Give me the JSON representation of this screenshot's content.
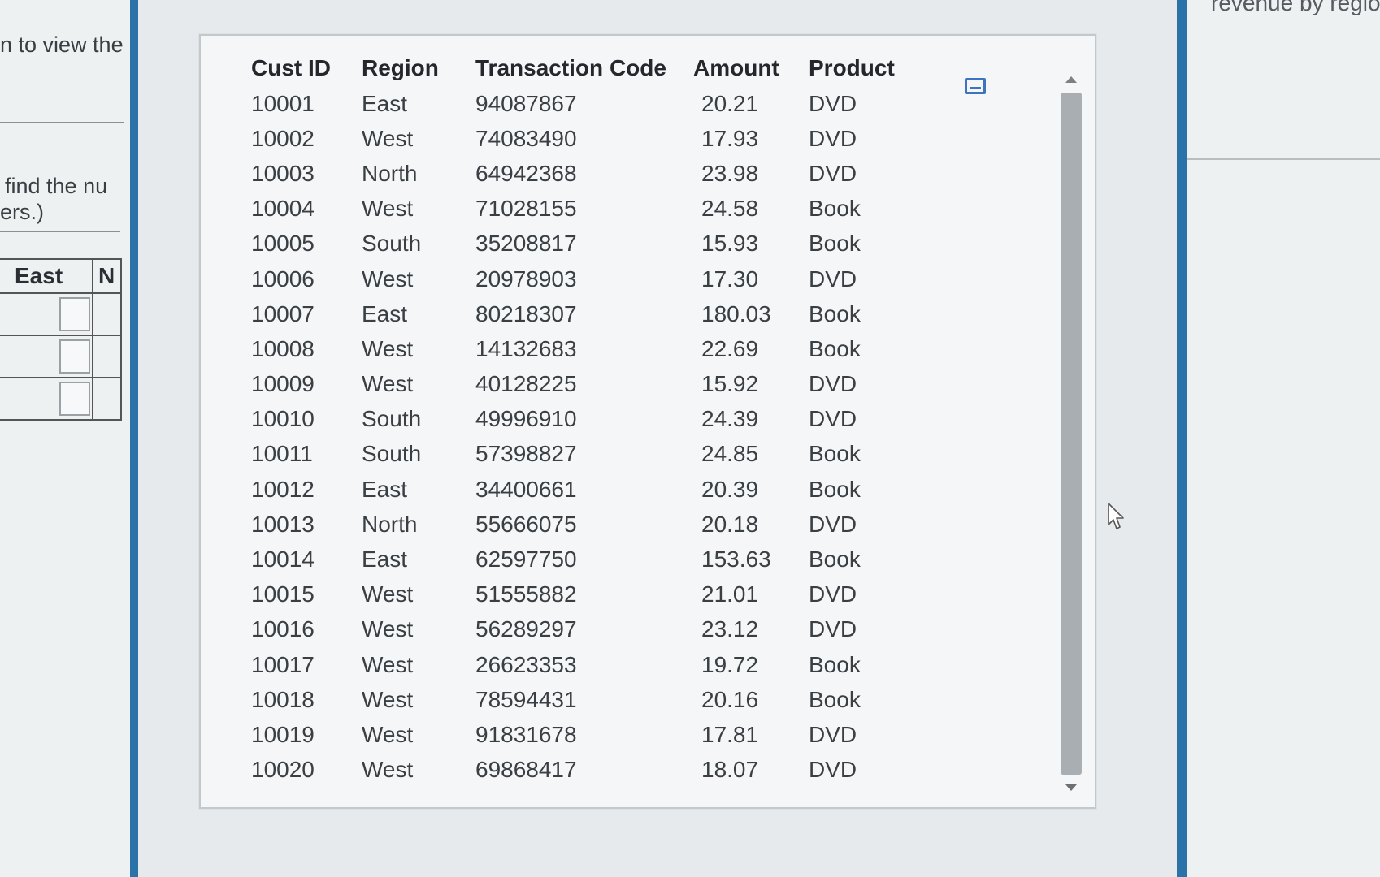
{
  "left_panel": {
    "text_line1": "n to view the",
    "text_line2": "find the nu",
    "text_line3": "ers.)",
    "table_headers": [
      "East",
      "N"
    ],
    "answer_box_count": 3
  },
  "right_panel": {
    "partial_title": "revenue by region"
  },
  "data_table": {
    "columns": [
      "Cust ID",
      "Region",
      "Transaction Code",
      "Amount",
      "Product"
    ],
    "rows": [
      [
        "10001",
        "East",
        "94087867",
        "20.21",
        "DVD"
      ],
      [
        "10002",
        "West",
        "74083490",
        "17.93",
        "DVD"
      ],
      [
        "10003",
        "North",
        "64942368",
        "23.98",
        "DVD"
      ],
      [
        "10004",
        "West",
        "71028155",
        "24.58",
        "Book"
      ],
      [
        "10005",
        "South",
        "35208817",
        "15.93",
        "Book"
      ],
      [
        "10006",
        "West",
        "20978903",
        "17.30",
        "DVD"
      ],
      [
        "10007",
        "East",
        "80218307",
        "180.03",
        "Book"
      ],
      [
        "10008",
        "West",
        "14132683",
        "22.69",
        "Book"
      ],
      [
        "10009",
        "West",
        "40128225",
        "15.92",
        "DVD"
      ],
      [
        "10010",
        "South",
        "49996910",
        "24.39",
        "DVD"
      ],
      [
        "10011",
        "South",
        "57398827",
        "24.85",
        "Book"
      ],
      [
        "10012",
        "East",
        "34400661",
        "20.39",
        "Book"
      ],
      [
        "10013",
        "North",
        "55666075",
        "20.18",
        "DVD"
      ],
      [
        "10014",
        "East",
        "62597750",
        "153.63",
        "Book"
      ],
      [
        "10015",
        "West",
        "51555882",
        "21.01",
        "DVD"
      ],
      [
        "10016",
        "West",
        "56289297",
        "23.12",
        "DVD"
      ],
      [
        "10017",
        "West",
        "26623353",
        "19.72",
        "Book"
      ],
      [
        "10018",
        "West",
        "78594431",
        "20.16",
        "Book"
      ],
      [
        "10019",
        "West",
        "91831678",
        "17.81",
        "DVD"
      ],
      [
        "10020",
        "West",
        "69868417",
        "18.07",
        "DVD"
      ]
    ]
  },
  "icons": {
    "popup_icon": "expand-window-icon",
    "pointer": "mouse-cursor-icon"
  },
  "colors": {
    "accent_bar": "#2a72a8",
    "icon_blue": "#3d74c0"
  }
}
